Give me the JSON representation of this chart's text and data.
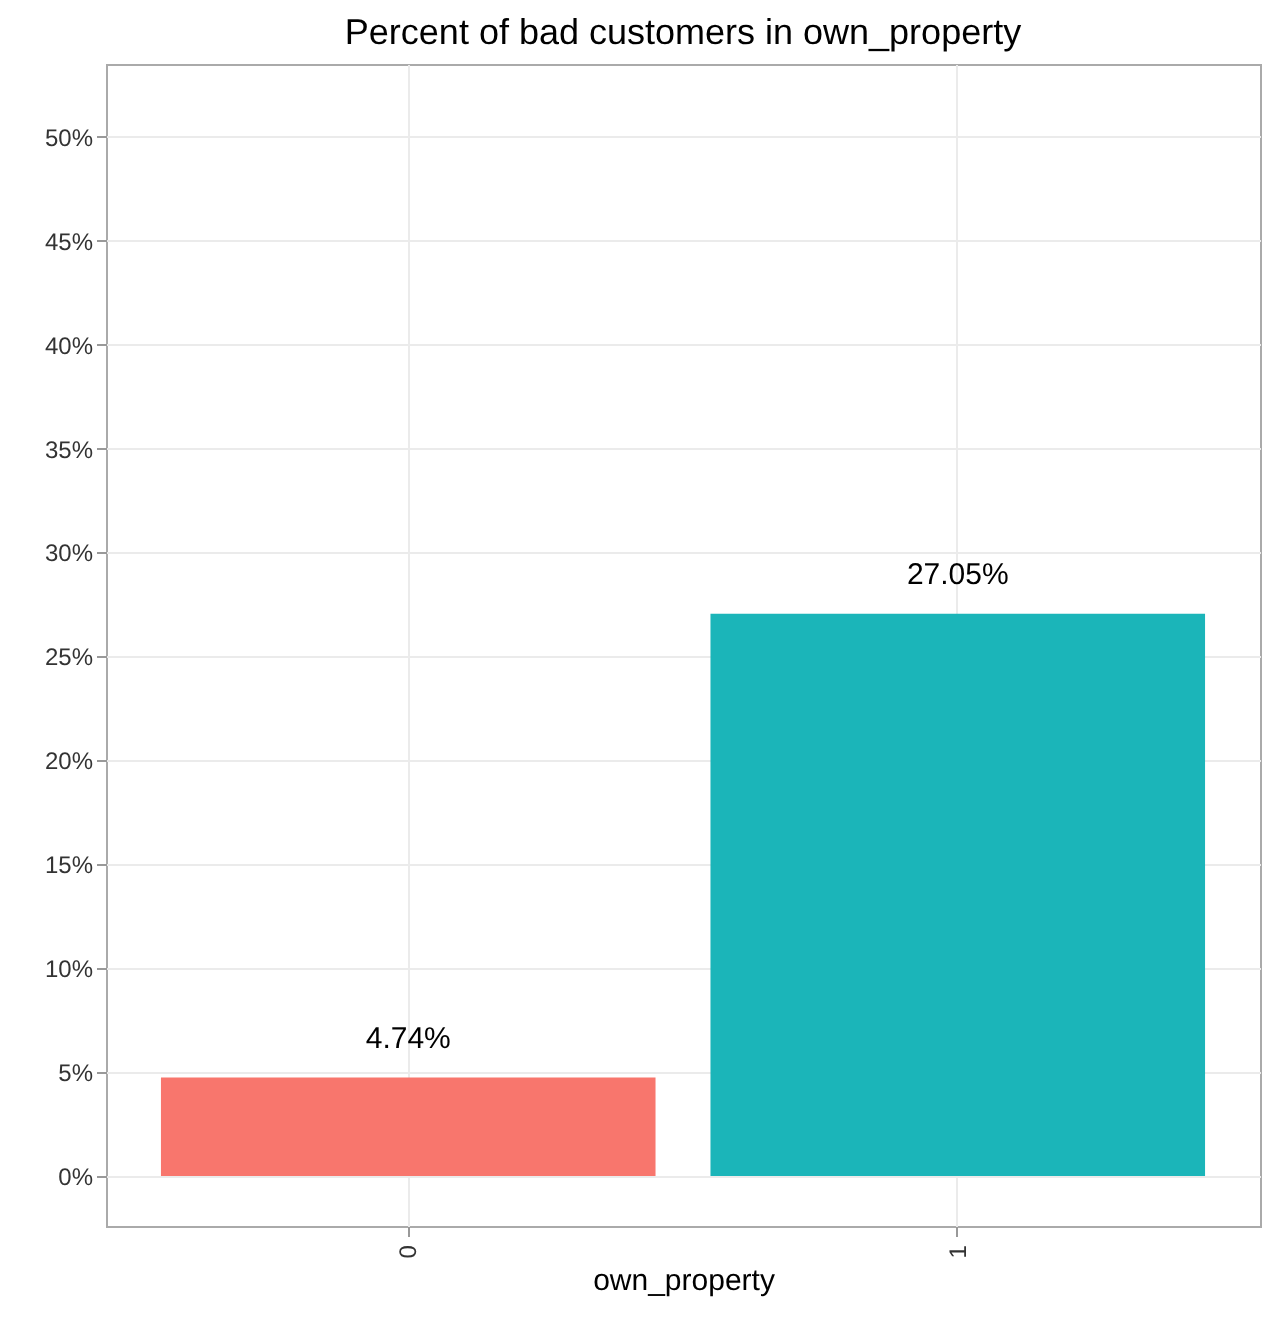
{
  "chart_data": {
    "type": "bar",
    "title": "Percent of bad customers in own_property",
    "xlabel": "own_property",
    "categories": [
      "0",
      "1"
    ],
    "values": [
      4.74,
      27.05
    ],
    "colors": [
      "#f8766d",
      "#1bb5b9"
    ],
    "value_labels": [
      "4.74%",
      "27.05%"
    ],
    "ylim": [
      -2.4,
      53.5
    ],
    "yticks": [
      {
        "value": 0,
        "label": "0%"
      },
      {
        "value": 5,
        "label": "5%"
      },
      {
        "value": 10,
        "label": "10%"
      },
      {
        "value": 15,
        "label": "15%"
      },
      {
        "value": 20,
        "label": "20%"
      },
      {
        "value": 25,
        "label": "25%"
      },
      {
        "value": 30,
        "label": "30%"
      },
      {
        "value": 35,
        "label": "35%"
      },
      {
        "value": 40,
        "label": "40%"
      },
      {
        "value": 45,
        "label": "45%"
      },
      {
        "value": 50,
        "label": "50%"
      }
    ],
    "grid": true
  }
}
